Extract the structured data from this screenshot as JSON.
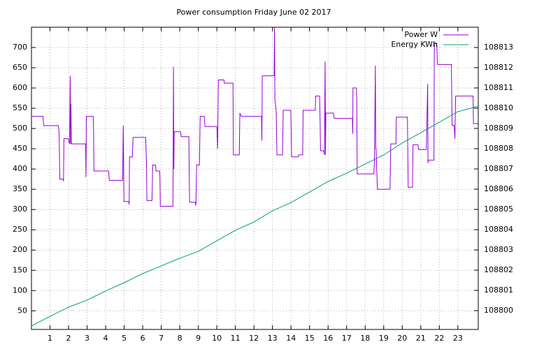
{
  "chart_data": {
    "type": "line",
    "title": "Power consumption Friday June 02 2017",
    "xlim": [
      0,
      24.1
    ],
    "xticks": [
      1,
      2,
      3,
      4,
      5,
      6,
      7,
      8,
      9,
      10,
      11,
      12,
      13,
      14,
      15,
      16,
      17,
      18,
      19,
      20,
      21,
      22,
      23
    ],
    "ylim": [
      4,
      750
    ],
    "yticks": [
      50,
      100,
      150,
      200,
      250,
      300,
      350,
      400,
      450,
      500,
      550,
      600,
      650,
      700
    ],
    "y2lim": [
      108799.07,
      108814
    ],
    "y2ticks": [
      108800,
      108801,
      108802,
      108803,
      108804,
      108805,
      108806,
      108807,
      108808,
      108809,
      108810,
      108811,
      108812,
      108813
    ],
    "grid": true,
    "legend": "top-right",
    "series": [
      {
        "name": "Power W",
        "color": "#9400d3",
        "x": [
          0,
          0.62,
          0.66,
          1.45,
          1.49,
          1.53,
          1.71,
          1.73,
          1.75,
          1.98,
          2.05,
          2.09,
          2.11,
          2.13,
          2.15,
          2.92,
          2.94,
          2.96,
          3.33,
          3.35,
          3.37,
          4.16,
          4.2,
          4.92,
          4.95,
          4.99,
          5.25,
          5.27,
          5.29,
          5.44,
          5.48,
          6.16,
          6.2,
          6.23,
          6.5,
          6.54,
          6.69,
          6.72,
          6.91,
          6.93,
          6.95,
          7.63,
          7.64,
          7.66,
          7.68,
          7.7,
          8.04,
          8.08,
          8.49,
          8.51,
          8.53,
          8.83,
          8.87,
          8.91,
          9.06,
          9.1,
          9.32,
          9.36,
          10,
          10.04,
          10.08,
          10.38,
          10.4,
          10.87,
          10.89,
          11.21,
          11.24,
          11.32,
          12.41,
          12.43,
          12.45,
          13.09,
          13.11,
          13.13,
          13.2,
          13.24,
          13.54,
          13.58,
          13.99,
          14.03,
          14.37,
          14.41,
          14.63,
          14.65,
          15.31,
          15.33,
          15.54,
          15.57,
          15.59,
          15.76,
          15.8,
          15.84,
          15.86,
          15.88,
          16.29,
          16.33,
          17.31,
          17.33,
          17.34,
          17.53,
          17.55,
          17.57,
          18.47,
          18.5,
          18.55,
          18.57,
          18.59,
          18.66,
          19.34,
          19.38,
          19.66,
          19.68,
          20.28,
          20.32,
          20.55,
          20.58,
          20.85,
          20.88,
          21.3,
          21.37,
          21.39,
          21.41,
          21.71,
          21.73,
          21.86,
          21.9,
          22.65,
          22.69,
          22.8,
          22.84,
          22.88,
          23.82,
          23.84,
          24.08
        ],
        "values": [
          530,
          530,
          507,
          507,
          490,
          375,
          375,
          370,
          475,
          475,
          462,
          630,
          462,
          560,
          462,
          462,
          380,
          530,
          530,
          500,
          395,
          395,
          372,
          372,
          507,
          320,
          320,
          312,
          430,
          430,
          478,
          478,
          420,
          322,
          322,
          410,
          410,
          395,
          395,
          380,
          308,
          308,
          400,
          652,
          400,
          492,
          492,
          480,
          480,
          390,
          318,
          318,
          310,
          410,
          410,
          530,
          530,
          505,
          505,
          450,
          620,
          620,
          612,
          612,
          435,
          435,
          538,
          530,
          530,
          470,
          630,
          630,
          750,
          570,
          545,
          435,
          435,
          545,
          545,
          430,
          430,
          435,
          435,
          545,
          545,
          580,
          580,
          517,
          445,
          445,
          435,
          665,
          435,
          538,
          538,
          525,
          525,
          487,
          600,
          600,
          560,
          388,
          388,
          420,
          655,
          450,
          450,
          350,
          350,
          462,
          462,
          528,
          528,
          355,
          355,
          460,
          460,
          448,
          448,
          610,
          415,
          422,
          422,
          710,
          710,
          658,
          658,
          508,
          508,
          475,
          580,
          580,
          512,
          512
        ]
      },
      {
        "name": "Energy KWh",
        "color": "#009e73",
        "axis": "y2",
        "x": [
          0,
          1,
          2,
          3,
          4,
          5,
          6,
          7,
          8,
          9,
          10,
          11,
          12,
          13,
          14,
          15,
          16,
          17,
          18,
          19,
          20,
          21,
          22,
          23,
          24.1
        ],
        "values": [
          108799.24,
          108799.72,
          108800.17,
          108800.52,
          108800.97,
          108801.38,
          108801.83,
          108802.21,
          108802.59,
          108802.93,
          108803.45,
          108803.97,
          108804.38,
          108804.93,
          108805.34,
          108805.86,
          108806.38,
          108806.79,
          108807.24,
          108807.69,
          108808.28,
          108808.79,
          108809.31,
          108809.83,
          108810.1
        ]
      }
    ]
  }
}
